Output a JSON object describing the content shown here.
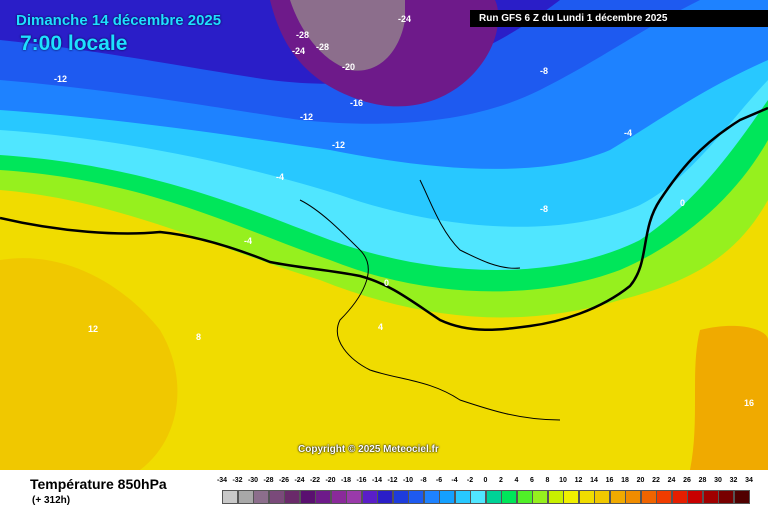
{
  "header": {
    "date": "Dimanche 14 décembre 2025",
    "hour": "7:00 locale",
    "run": "Run GFS 6 Z du Lundi 1 décembre 2025"
  },
  "footer": {
    "field": "Température 850hPa",
    "lead": "(+ 312h)",
    "copyright": "Copyright © 2025 Meteociel.fr"
  },
  "legend": {
    "ticks": [
      "-34",
      "-32",
      "-30",
      "-28",
      "-26",
      "-24",
      "-22",
      "-20",
      "-18",
      "-16",
      "-14",
      "-12",
      "-10",
      "-8",
      "-6",
      "-4",
      "-2",
      "0",
      "2",
      "4",
      "6",
      "8",
      "10",
      "12",
      "14",
      "16",
      "18",
      "20",
      "22",
      "24",
      "26",
      "28",
      "30",
      "32",
      "34"
    ],
    "colors": [
      "#c8c8c8",
      "#a8a8a8",
      "#8c6e8c",
      "#7a4a7a",
      "#6a2a6a",
      "#5a1070",
      "#6e1a8a",
      "#8a2a9a",
      "#9a3aaa",
      "#5a1ec8",
      "#2a1ec8",
      "#1e3cdc",
      "#1e5af0",
      "#1e82ff",
      "#14a0ff",
      "#28c8ff",
      "#50e6ff",
      "#00d296",
      "#00e65a",
      "#50f028",
      "#96f01e",
      "#c8f000",
      "#f0f000",
      "#f0dc00",
      "#f0c800",
      "#f0aa00",
      "#f08c00",
      "#f06400",
      "#f03c00",
      "#e61e00",
      "#c80000",
      "#a00000",
      "#780000",
      "#500000"
    ]
  },
  "map_labels": [
    {
      "text": "-24"
    },
    {
      "text": "-28"
    },
    {
      "text": "-28"
    },
    {
      "text": "-24"
    },
    {
      "text": "-20"
    },
    {
      "text": "-16"
    },
    {
      "text": "-12"
    },
    {
      "text": "-12"
    },
    {
      "text": "-12"
    },
    {
      "text": "-8"
    },
    {
      "text": "-8"
    },
    {
      "text": "-4"
    },
    {
      "text": "-4"
    },
    {
      "text": "-4"
    },
    {
      "text": "0"
    },
    {
      "text": "0"
    },
    {
      "text": "4"
    },
    {
      "text": "8"
    },
    {
      "text": "12"
    },
    {
      "text": "16"
    }
  ]
}
